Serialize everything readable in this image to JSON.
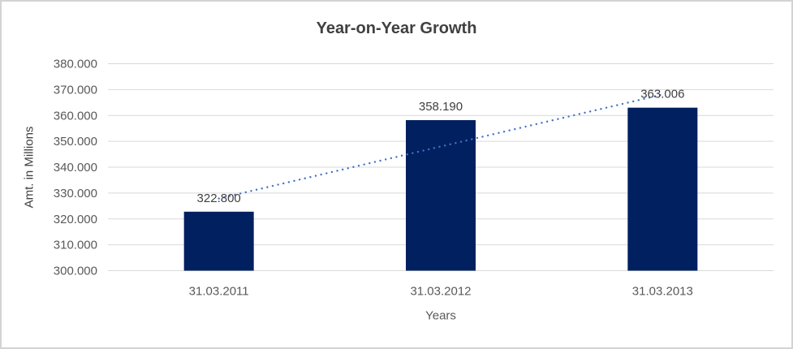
{
  "chart_data": {
    "type": "bar",
    "title": "Year-on-Year Growth",
    "xlabel": "Years",
    "ylabel": "Amt. in Millions",
    "categories": [
      "31.03.2011",
      "31.03.2012",
      "31.03.2013"
    ],
    "values": [
      322800,
      358190,
      363006
    ],
    "data_labels": [
      "322.800",
      "358.190",
      "363.006"
    ],
    "ylim": [
      300000,
      380000
    ],
    "ytick_step": 10000,
    "ytick_labels": [
      "300.000",
      "310.000",
      "320.000",
      "330.000",
      "340.000",
      "350.000",
      "360.000",
      "370.000",
      "380.000"
    ],
    "grid": true,
    "legend": "none",
    "trendline": {
      "type": "linear",
      "style": "dotted",
      "color": "#4472c4"
    },
    "colors": {
      "bar": "#002060",
      "gridline": "#d9d9d9",
      "tick_text": "#595959",
      "title_text": "#404040",
      "data_label_text": "#404040",
      "frame_border": "#d3d3d3"
    }
  }
}
